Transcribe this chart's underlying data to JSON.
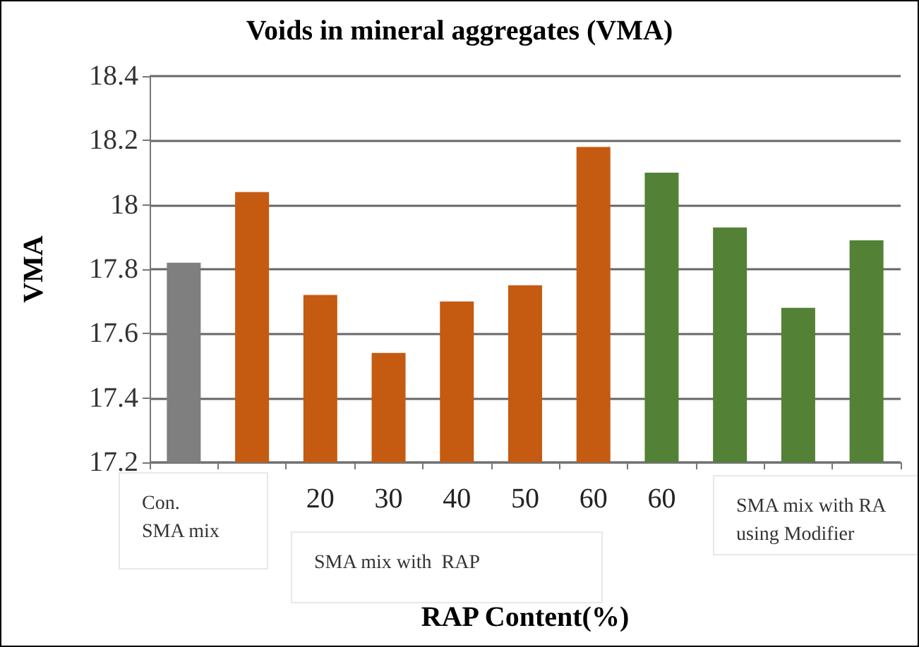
{
  "chart_data": {
    "type": "bar",
    "title": "Voids in mineral aggregates (VMA)",
    "xlabel": "RAP Content(%)",
    "ylabel": "VMA",
    "categories": [
      null,
      null,
      "20",
      "30",
      "40",
      "50",
      "60",
      "60",
      null,
      null,
      null
    ],
    "values": [
      17.82,
      18.04,
      17.72,
      17.54,
      17.7,
      17.75,
      18.18,
      18.1,
      17.93,
      17.68,
      17.89
    ],
    "colors": [
      "#7f7f7f",
      "#c55a11",
      "#c55a11",
      "#c55a11",
      "#c55a11",
      "#c55a11",
      "#c55a11",
      "#538135",
      "#538135",
      "#538135",
      "#538135"
    ],
    "ylim": [
      17.2,
      18.4
    ],
    "yticks": [
      17.2,
      17.4,
      17.6,
      17.8,
      18,
      18.2,
      18.4
    ],
    "grid": "y",
    "annotations": [
      "Con. SMA mix",
      "SMA mix with  RAP",
      "SMA mix with RA using Modifier"
    ]
  }
}
